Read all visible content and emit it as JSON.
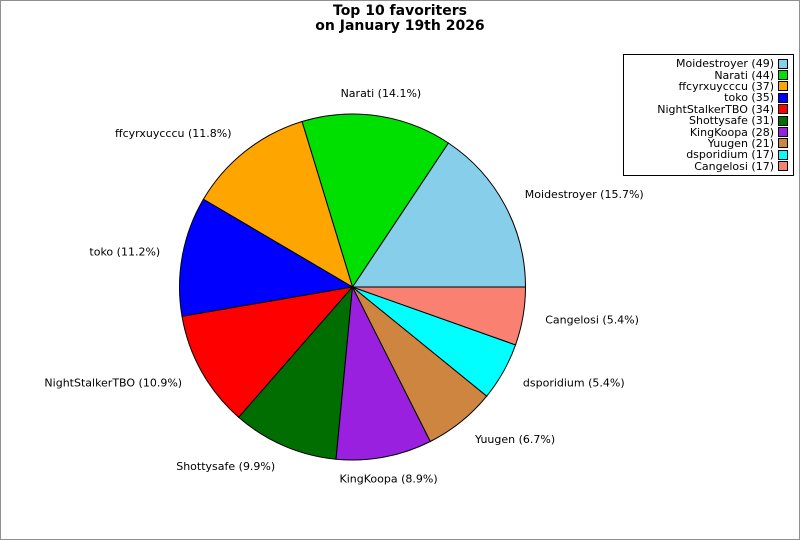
{
  "title": {
    "line1": "Top 10 favoriters",
    "line2": "on January 19th 2026"
  },
  "chart_data": {
    "type": "pie",
    "title": "Top 10 favoriters on January 19th 2026",
    "start_angle_deg": 0,
    "direction": "counterclockwise",
    "total": 313,
    "label_distance": 1.13,
    "legend_position": "upper right",
    "slices": [
      {
        "name": "Moidestroyer",
        "value": 49,
        "pct": 15.7,
        "label": "Moidestroyer (15.7%)",
        "legend": "Moidestroyer (49)",
        "color": "#87CEEB"
      },
      {
        "name": "Narati",
        "value": 44,
        "pct": 14.1,
        "label": "Narati (14.1%)",
        "legend": "Narati (44)",
        "color": "#00E000"
      },
      {
        "name": "ffcyrxuycccu",
        "value": 37,
        "pct": 11.8,
        "label": "ffcyrxuycccu (11.8%)",
        "legend": "ffcyrxuycccu (37)",
        "color": "#FFA500"
      },
      {
        "name": "toko",
        "value": 35,
        "pct": 11.2,
        "label": "toko (11.2%)",
        "legend": "toko (35)",
        "color": "#0000FF"
      },
      {
        "name": "NightStalkerTBO",
        "value": 34,
        "pct": 10.9,
        "label": "NightStalkerTBO (10.9%)",
        "legend": "NightStalkerTBO (34)",
        "color": "#FF0000"
      },
      {
        "name": "Shottysafe",
        "value": 31,
        "pct": 9.9,
        "label": "Shottysafe (9.9%)",
        "legend": "Shottysafe (31)",
        "color": "#006E00"
      },
      {
        "name": "KingKoopa",
        "value": 28,
        "pct": 8.9,
        "label": "KingKoopa (8.9%)",
        "legend": "KingKoopa (28)",
        "color": "#9A20E0"
      },
      {
        "name": "Yuugen",
        "value": 21,
        "pct": 6.7,
        "label": "Yuugen (6.7%)",
        "legend": "Yuugen (21)",
        "color": "#CD853F"
      },
      {
        "name": "dsporidium",
        "value": 17,
        "pct": 5.4,
        "label": "dsporidium (5.4%)",
        "legend": "dsporidium (17)",
        "color": "#00FFFF"
      },
      {
        "name": "Cangelosi",
        "value": 17,
        "pct": 5.4,
        "label": "Cangelosi (5.4%)",
        "legend": "Cangelosi (17)",
        "color": "#FA8072"
      }
    ]
  }
}
